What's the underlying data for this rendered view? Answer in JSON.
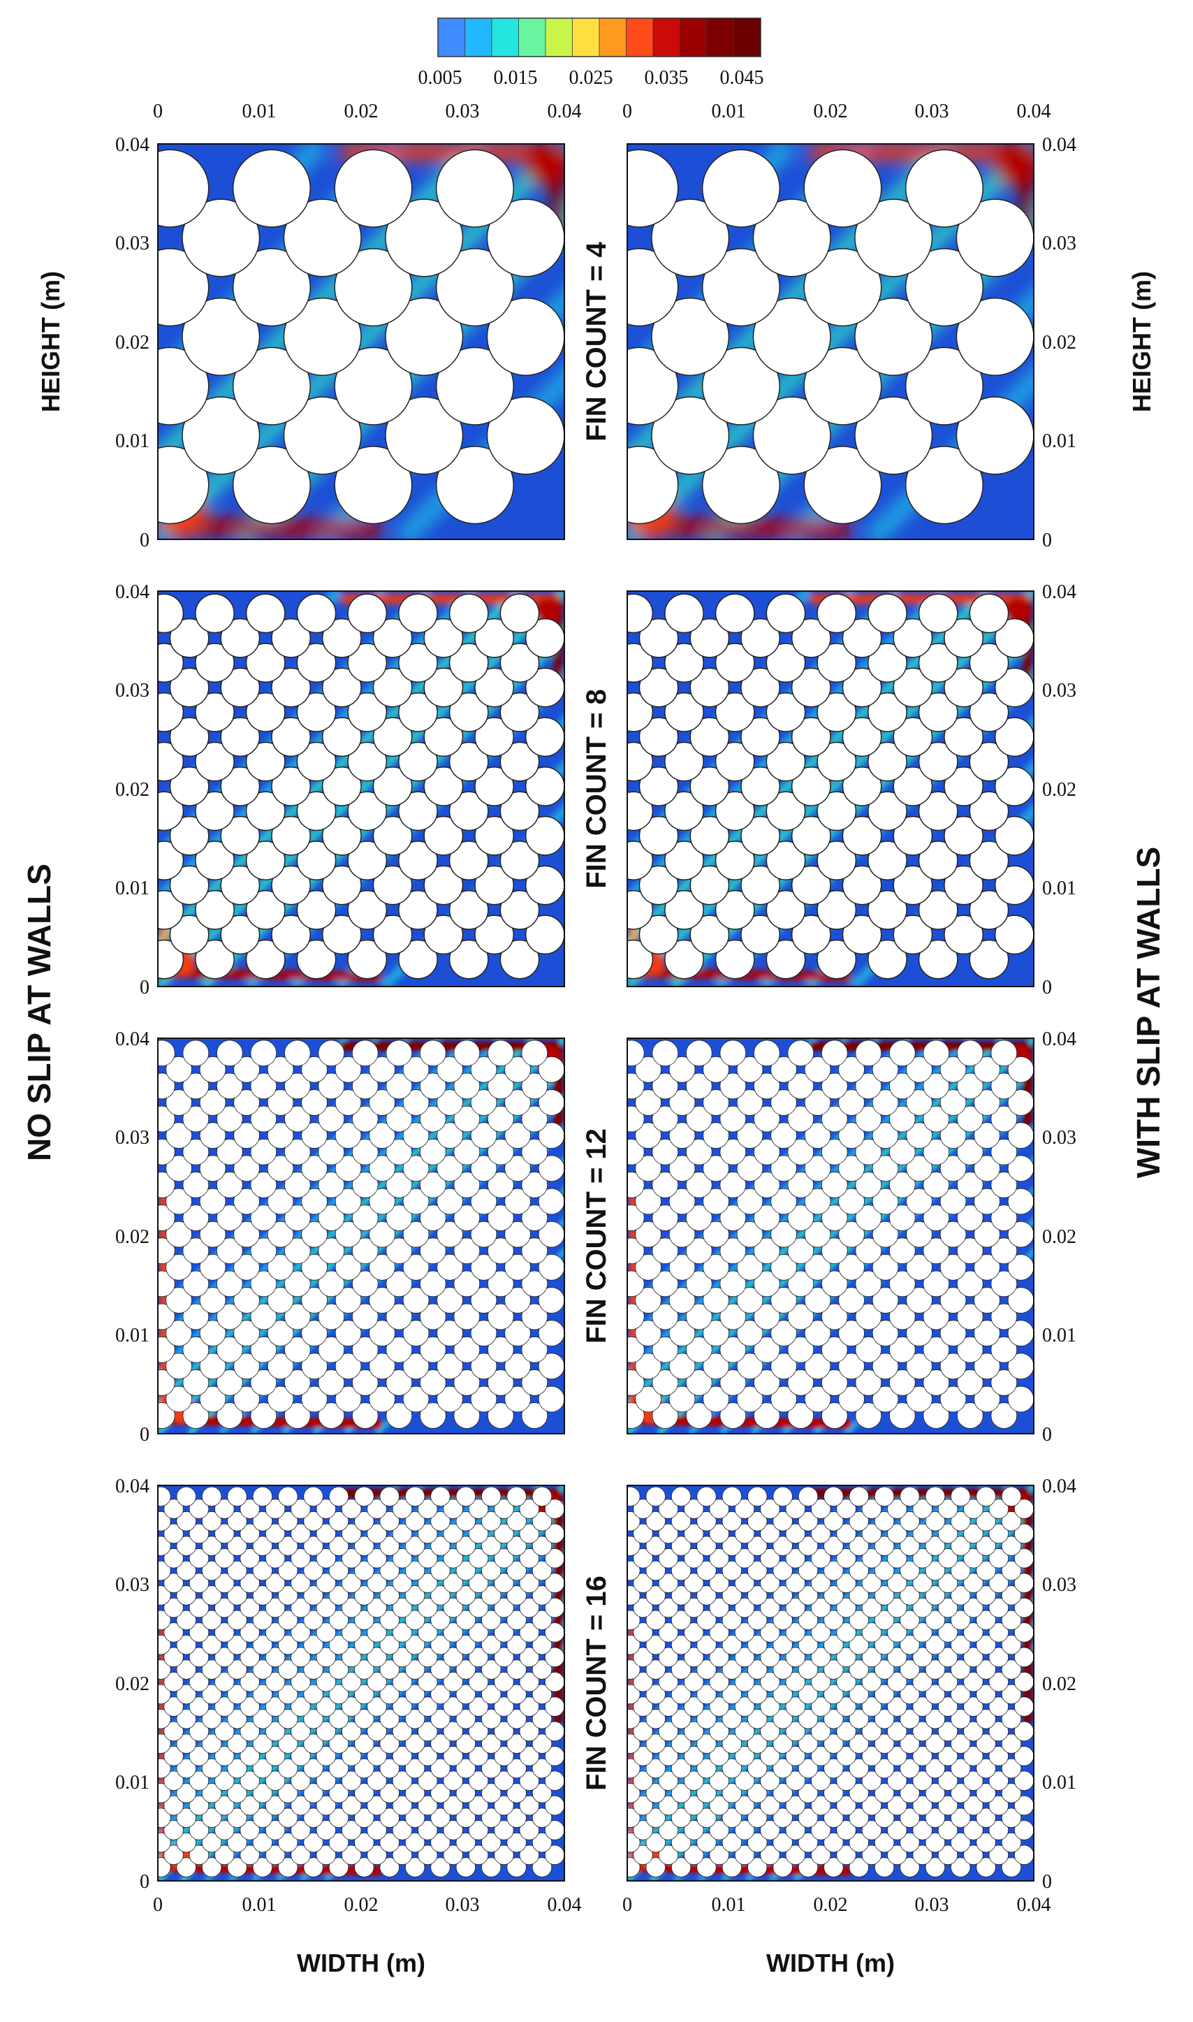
{
  "colorbar": {
    "tick_labels": [
      "0.005",
      "0.015",
      "0.025",
      "0.035",
      "0.045"
    ],
    "colors": [
      "#3f8cff",
      "#22b8ff",
      "#23e6e0",
      "#69f5a0",
      "#c9f44a",
      "#ffe040",
      "#ff9a1f",
      "#ff4a1a",
      "#cc0a0a",
      "#9a0000",
      "#7c0000",
      "#6a0000"
    ]
  },
  "colormap": [
    "#1330a8",
    "#1d4fd6",
    "#1f86ea",
    "#1fb8e4",
    "#31dbc7",
    "#8cf07a",
    "#e8e63a",
    "#ffa020",
    "#ef3a16",
    "#b40606",
    "#7a0000"
  ],
  "labels": {
    "no_slip": "NO SLIP AT WALLS",
    "with_slip": "WITH SLIP AT WALLS",
    "height": "HEIGHT (m)",
    "width": "WIDTH (m)"
  },
  "fin_counts": [
    {
      "label": "FIN COUNT = 4",
      "count": 4
    },
    {
      "label": "FIN COUNT = 8",
      "count": 8
    },
    {
      "label": "FIN COUNT = 12",
      "count": 12
    },
    {
      "label": "FIN COUNT = 16",
      "count": 16
    }
  ],
  "axis": {
    "range": [
      0,
      0.04
    ],
    "y_ticks": [
      "0",
      "0.01",
      "0.02",
      "0.03",
      "0.04"
    ],
    "x_ticks_top": [
      "0",
      "0.01",
      "0.02",
      "0.03",
      "0.04"
    ],
    "x_ticks_bottom": [
      "0",
      "0.01",
      "0.02",
      "0.03",
      "0.04"
    ]
  }
}
